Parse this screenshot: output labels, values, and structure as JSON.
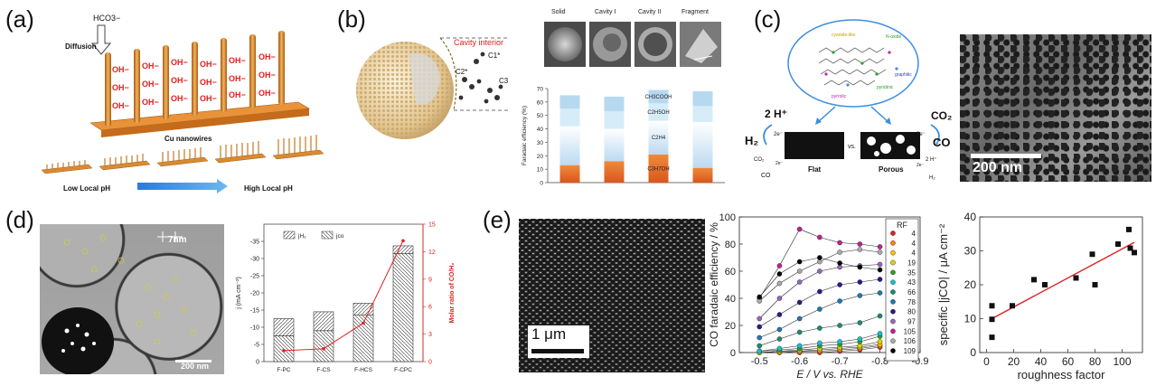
{
  "panel_labels": [
    "(a)",
    "(b)",
    "(c)",
    "(d)",
    "(e)"
  ],
  "panel_a": {
    "ion": "HCO3−",
    "diffusion": "Diffusion",
    "oh": "OH−",
    "wires_label": "Cu nanowires",
    "low_ph": "Low Local pH",
    "high_ph": "High Local pH"
  },
  "panel_b": {
    "cavity_title": "Cavity interior",
    "species": [
      "C1*",
      "C2*",
      "C3"
    ],
    "morphologies": [
      "Solid",
      "Cavity I",
      "Cavity II",
      "Fragment"
    ],
    "products": [
      "CH3COOH",
      "C2H5OH",
      "C2H4",
      "C3H7OH"
    ]
  },
  "panel_c": {
    "dopants": [
      "pyrrolic",
      "graphitic",
      "pyridinic",
      "N-oxide",
      "cyanide-like"
    ],
    "h_plus": "2 H⁺",
    "h2": "H₂",
    "co2": "CO₂",
    "co": "CO",
    "two_e": "2e⁻",
    "flat": "Flat",
    "vs": "vs.",
    "porous": "Porous",
    "scale": "200 nm"
  },
  "panel_d": {
    "pore": "7nm",
    "scale": "200 nm"
  },
  "panel_e": {
    "scale": "1 μm"
  },
  "colors": {
    "orange": "#e0692a",
    "blue_light": "#cfe6f5",
    "red": "#e02020",
    "arrow_blue": "#3d8fe0"
  },
  "chart_data": [
    {
      "type": "bar",
      "id": "b_fe",
      "categories": [
        "Solid",
        "Cavity I",
        "Cavity II",
        "Fragment"
      ],
      "ylabel": "Faradaic efficiency (%)",
      "ylim": [
        0,
        70
      ],
      "yticks": [
        0,
        10,
        20,
        30,
        40,
        50,
        60,
        70
      ],
      "series": [
        {
          "name": "C3H7OH",
          "values": [
            13,
            16,
            21,
            11
          ]
        },
        {
          "name": "C2H4",
          "values": [
            29,
            24,
            25,
            34
          ]
        },
        {
          "name": "C2H5OH",
          "values": [
            13,
            13,
            13,
            12
          ]
        },
        {
          "name": "CH3COOH",
          "values": [
            10,
            11,
            10,
            11
          ]
        }
      ],
      "labels": [
        "CH3COOH",
        "C2H5OH",
        "C2H4",
        "C3H7OH"
      ]
    },
    {
      "type": "bar",
      "id": "d_current",
      "categories": [
        "F-PC",
        "F-CS",
        "F-HCS",
        "F-CPC"
      ],
      "ylabel": "j (mA cm⁻²)",
      "y2label": "Molar ratio of CO/H₂",
      "ylim": [
        0,
        -40
      ],
      "yticks": [
        0,
        -5,
        -10,
        -15,
        -20,
        -25,
        -30,
        -35
      ],
      "y2lim": [
        0,
        15
      ],
      "y2ticks": [
        0,
        3,
        6,
        9,
        12,
        15
      ],
      "legend": [
        "jH₂",
        "jco"
      ],
      "series": [
        {
          "name": "jco",
          "values": [
            -7.5,
            -9,
            -13.5,
            -31.5
          ]
        },
        {
          "name": "jH2",
          "values": [
            -5,
            -5.5,
            -3.5,
            -2.2
          ]
        }
      ],
      "ratio": [
        1.2,
        1.4,
        4.2,
        13.2
      ]
    },
    {
      "type": "line",
      "id": "e_fe",
      "xlabel": "E / V vs. RHE",
      "ylabel": "CO faradaic efficiency / %",
      "xlim": [
        -0.45,
        -0.9
      ],
      "ylim": [
        0,
        100
      ],
      "xticks": [
        -0.5,
        -0.6,
        -0.7,
        -0.8,
        -0.9
      ],
      "xtick_labels": [
        "-0.5",
        "-0.6",
        "-0.7",
        "-0.8",
        "-0.9"
      ],
      "yticks": [
        0,
        20,
        40,
        60,
        80,
        100
      ],
      "x": [
        -0.5,
        -0.55,
        -0.6,
        -0.65,
        -0.7,
        -0.75,
        -0.8
      ],
      "legend_title": "RF",
      "series": [
        {
          "name": "4",
          "color": "#d62728",
          "values": [
            0,
            0,
            0,
            0,
            1,
            2,
            4
          ]
        },
        {
          "name": "4",
          "color": "#ff7f0e",
          "values": [
            0,
            0,
            1,
            1,
            2,
            3,
            5
          ]
        },
        {
          "name": "4",
          "color": "#ffbf00",
          "values": [
            0,
            1,
            1,
            2,
            3,
            4,
            6
          ]
        },
        {
          "name": "19",
          "color": "#d4d400",
          "values": [
            0,
            1,
            2,
            3,
            4,
            5,
            8
          ]
        },
        {
          "name": "35",
          "color": "#2ca02c",
          "values": [
            1,
            2,
            3,
            5,
            6,
            8,
            12
          ]
        },
        {
          "name": "43",
          "color": "#17becf",
          "values": [
            1,
            3,
            5,
            7,
            8,
            10,
            14
          ]
        },
        {
          "name": "66",
          "color": "#1f8a70",
          "values": [
            5,
            10,
            15,
            18,
            20,
            22,
            27
          ]
        },
        {
          "name": "78",
          "color": "#1f77b4",
          "values": [
            11,
            17,
            25,
            32,
            38,
            42,
            44
          ]
        },
        {
          "name": "80",
          "color": "#2a1a8a",
          "values": [
            19,
            28,
            37,
            45,
            50,
            52,
            54
          ]
        },
        {
          "name": "97",
          "color": "#9467bd",
          "values": [
            25,
            40,
            52,
            60,
            63,
            64,
            65
          ]
        },
        {
          "name": "105",
          "color": "#c02090",
          "values": [
            40,
            64,
            91,
            85,
            81,
            80,
            78
          ]
        },
        {
          "name": "106",
          "color": "#aaaaaa",
          "values": [
            38,
            51,
            60,
            67,
            74,
            76,
            74
          ]
        },
        {
          "name": "109",
          "color": "#000000",
          "values": [
            41,
            58,
            67,
            70,
            66,
            63,
            61
          ]
        }
      ]
    },
    {
      "type": "scatter",
      "id": "e_rough",
      "xlabel": "roughness factor",
      "ylabel": "specific |jCO| / μA cm⁻²",
      "xlim": [
        -5,
        115
      ],
      "ylim": [
        0,
        40
      ],
      "xticks": [
        0,
        20,
        40,
        60,
        80,
        100
      ],
      "yticks": [
        0,
        10,
        20,
        30,
        40
      ],
      "x": [
        4,
        4,
        4,
        19,
        35,
        43,
        66,
        78,
        80,
        97,
        105,
        106,
        109
      ],
      "y": [
        4.5,
        9.8,
        13.8,
        13.8,
        21.5,
        20,
        22,
        29,
        20,
        32,
        36.3,
        30.8,
        29.5
      ],
      "fit": {
        "x": [
          4,
          109
        ],
        "y": [
          10,
          32.5
        ],
        "color": "#e02020"
      }
    }
  ]
}
